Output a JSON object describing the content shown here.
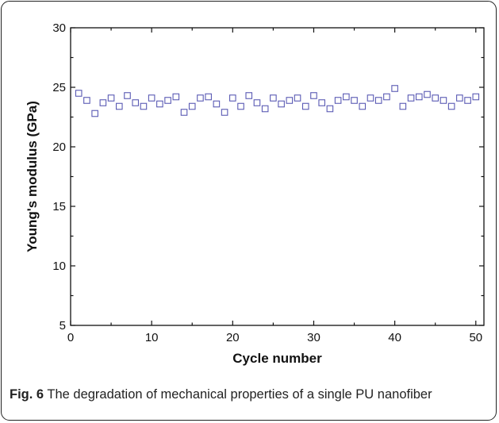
{
  "caption": {
    "label": "Fig. 6",
    "text": " The degradation of mechanical properties of a single PU nanofiber"
  },
  "chart_data": {
    "type": "scatter",
    "xlabel": "Cycle number",
    "ylabel": "Young's modulus (GPa)",
    "xlim": [
      0,
      51
    ],
    "ylim": [
      5,
      30
    ],
    "xticks": [
      0,
      10,
      20,
      30,
      40,
      50
    ],
    "yticks": [
      5,
      10,
      15,
      20,
      25,
      30
    ],
    "grid": false,
    "marker": "open-square",
    "marker_color": "#5a5ab4",
    "series": [
      {
        "x": [
          1,
          2,
          3,
          4,
          5,
          6,
          7,
          8,
          9,
          10,
          11,
          12,
          13,
          14,
          15,
          16,
          17,
          18,
          19,
          20,
          21,
          22,
          23,
          24,
          25,
          26,
          27,
          28,
          29,
          30,
          31,
          32,
          33,
          34,
          35,
          36,
          37,
          38,
          39,
          40,
          41,
          42,
          43,
          44,
          45,
          46,
          47,
          48,
          49,
          50
        ],
        "y": [
          24.5,
          23.9,
          22.8,
          23.7,
          24.1,
          23.4,
          24.3,
          23.7,
          23.4,
          24.1,
          23.6,
          23.9,
          24.2,
          22.9,
          23.4,
          24.1,
          24.2,
          23.6,
          22.9,
          24.1,
          23.4,
          24.3,
          23.7,
          23.2,
          24.1,
          23.6,
          23.9,
          24.1,
          23.4,
          24.3,
          23.7,
          23.2,
          23.9,
          24.2,
          23.9,
          23.4,
          24.1,
          23.9,
          24.2,
          24.9,
          23.4,
          24.1,
          24.2,
          24.4,
          24.1,
          23.9,
          23.4,
          24.1,
          23.9,
          24.2
        ]
      }
    ]
  }
}
